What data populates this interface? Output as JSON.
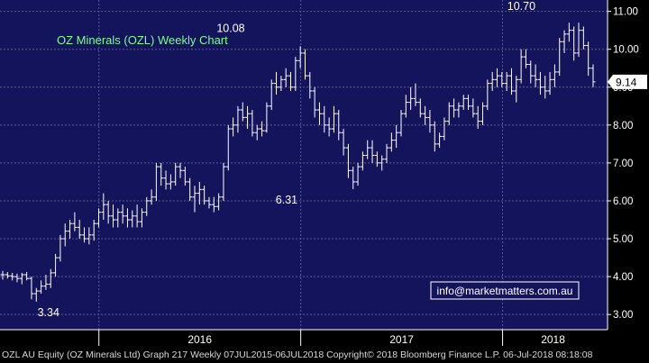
{
  "footer": "OZL AU Equity (OZ Minerals Ltd) Graph 217  Weekly 07JUL2015-06JUL2018 Copyright© 2018 Bloomberg Finance L.P. 06-Jul-2018 08:18:08",
  "colors": {
    "background": "#000000",
    "plot_background": "#14145c",
    "grid": "#5a5a90",
    "bars": "#ffffff",
    "title": "#7cff8c",
    "last_price_label_bg": "#ffffff",
    "info_border": "#ffffff",
    "info_text": "#ffffff"
  },
  "chart_data": {
    "type": "ohlc",
    "title": "OZ Minerals (OZL) Weekly Chart",
    "frequency": "weekly",
    "y_ticks": [
      "3.00",
      "4.00",
      "5.00",
      "6.00",
      "7.00",
      "8.00",
      "9.00",
      "10.00",
      "11.00"
    ],
    "ylim": [
      2.6,
      11.3
    ],
    "xlim": [
      2015.51,
      2018.52
    ],
    "x_labels": [
      {
        "label": "2016",
        "x": 2016.0
      },
      {
        "label": "2017",
        "x": 2017.0
      },
      {
        "label": "2018",
        "x": 2018.0
      }
    ],
    "last_price": "9.14",
    "annotations": [
      {
        "text": "3.34",
        "x": 2015.75,
        "y": 3.34
      },
      {
        "text": "10.08",
        "x": 2016.68,
        "y": 10.08
      },
      {
        "text": "6.31",
        "x": 2016.93,
        "y": 6.31
      },
      {
        "text": "10.70",
        "x": 2018.12,
        "y": 10.7
      }
    ],
    "info_box": "info@marketmatters.com.au",
    "series": [
      {
        "values": [
          [
            4.05,
            4.15,
            3.92,
            4.05
          ],
          [
            4.05,
            4.12,
            3.95,
            4.02
          ],
          [
            4.02,
            4.1,
            3.9,
            4.0
          ],
          [
            4.0,
            4.08,
            3.85,
            3.95
          ],
          [
            3.95,
            4.1,
            3.8,
            4.05
          ],
          [
            4.05,
            4.12,
            3.9,
            3.95
          ],
          [
            3.95,
            4.0,
            3.4,
            3.55
          ],
          [
            3.55,
            3.7,
            3.34,
            3.62
          ],
          [
            3.62,
            3.9,
            3.55,
            3.75
          ],
          [
            3.75,
            4.05,
            3.65,
            3.8
          ],
          [
            3.8,
            4.2,
            3.7,
            4.1
          ],
          [
            4.1,
            4.6,
            4.0,
            4.5
          ],
          [
            4.5,
            5.1,
            4.4,
            5.0
          ],
          [
            5.0,
            5.4,
            4.8,
            5.2
          ],
          [
            5.2,
            5.5,
            5.0,
            5.4
          ],
          [
            5.4,
            5.7,
            5.2,
            5.3
          ],
          [
            5.3,
            5.5,
            5.0,
            5.1
          ],
          [
            5.1,
            5.3,
            4.9,
            5.0
          ],
          [
            5.0,
            5.3,
            4.85,
            5.1
          ],
          [
            5.1,
            5.5,
            4.95,
            5.4
          ],
          [
            5.4,
            5.8,
            5.3,
            5.7
          ],
          [
            5.7,
            6.2,
            5.5,
            5.9
          ],
          [
            5.9,
            6.0,
            5.4,
            5.6
          ],
          [
            5.6,
            5.9,
            5.3,
            5.5
          ],
          [
            5.5,
            5.8,
            5.3,
            5.7
          ],
          [
            5.7,
            5.9,
            5.4,
            5.6
          ],
          [
            5.6,
            5.8,
            5.3,
            5.5
          ],
          [
            5.5,
            5.75,
            5.3,
            5.6
          ],
          [
            5.6,
            5.9,
            5.3,
            5.45
          ],
          [
            5.45,
            5.8,
            5.3,
            5.7
          ],
          [
            5.7,
            6.1,
            5.6,
            6.0
          ],
          [
            6.0,
            6.3,
            5.9,
            6.1
          ],
          [
            6.1,
            7.0,
            6.0,
            6.9
          ],
          [
            6.9,
            7.0,
            6.4,
            6.6
          ],
          [
            6.6,
            6.8,
            6.3,
            6.45
          ],
          [
            6.45,
            6.7,
            6.3,
            6.5
          ],
          [
            6.5,
            7.0,
            6.4,
            6.9
          ],
          [
            6.9,
            7.0,
            6.6,
            6.8
          ],
          [
            6.8,
            6.9,
            6.4,
            6.5
          ],
          [
            6.5,
            6.6,
            6.0,
            6.1
          ],
          [
            6.1,
            6.4,
            5.7,
            6.2
          ],
          [
            6.2,
            6.5,
            5.9,
            6.3
          ],
          [
            6.3,
            6.4,
            5.9,
            6.0
          ],
          [
            6.0,
            6.1,
            5.8,
            5.9
          ],
          [
            5.9,
            6.1,
            5.7,
            5.85
          ],
          [
            5.85,
            6.2,
            5.75,
            6.1
          ],
          [
            6.1,
            7.0,
            6.0,
            6.9
          ],
          [
            6.9,
            8.0,
            6.8,
            7.9
          ],
          [
            7.9,
            8.2,
            7.7,
            8.0
          ],
          [
            8.0,
            8.5,
            7.8,
            8.4
          ],
          [
            8.4,
            8.6,
            8.1,
            8.2
          ],
          [
            8.2,
            8.5,
            7.9,
            8.3
          ],
          [
            8.3,
            8.4,
            7.7,
            7.8
          ],
          [
            7.8,
            8.0,
            7.6,
            7.9
          ],
          [
            7.9,
            8.1,
            7.7,
            7.85
          ],
          [
            7.85,
            8.6,
            7.8,
            8.5
          ],
          [
            8.5,
            9.2,
            8.4,
            9.1
          ],
          [
            9.1,
            9.4,
            8.8,
            9.0
          ],
          [
            9.0,
            9.3,
            8.9,
            9.2
          ],
          [
            9.2,
            9.5,
            9.0,
            9.3
          ],
          [
            9.3,
            9.4,
            8.9,
            9.0
          ],
          [
            9.0,
            9.8,
            8.9,
            9.7
          ],
          [
            9.7,
            10.08,
            9.5,
            9.9
          ],
          [
            9.9,
            10.0,
            9.2,
            9.3
          ],
          [
            9.3,
            9.4,
            8.7,
            8.9
          ],
          [
            8.9,
            9.0,
            8.2,
            8.4
          ],
          [
            8.4,
            8.6,
            8.0,
            8.3
          ],
          [
            8.3,
            8.5,
            7.8,
            8.0
          ],
          [
            8.0,
            8.2,
            7.7,
            7.9
          ],
          [
            7.9,
            8.5,
            7.8,
            8.3
          ],
          [
            8.3,
            8.4,
            7.6,
            7.8
          ],
          [
            7.8,
            7.9,
            7.2,
            7.4
          ],
          [
            7.4,
            7.5,
            6.6,
            6.8
          ],
          [
            6.8,
            6.9,
            6.31,
            6.5
          ],
          [
            6.5,
            7.0,
            6.4,
            6.9
          ],
          [
            6.9,
            7.3,
            6.8,
            7.2
          ],
          [
            7.2,
            7.6,
            7.1,
            7.4
          ],
          [
            7.4,
            7.6,
            7.0,
            7.2
          ],
          [
            7.2,
            7.3,
            6.9,
            7.0
          ],
          [
            7.0,
            7.2,
            6.8,
            7.1
          ],
          [
            7.1,
            7.5,
            7.0,
            7.4
          ],
          [
            7.4,
            7.8,
            7.3,
            7.6
          ],
          [
            7.6,
            8.0,
            7.4,
            7.8
          ],
          [
            7.8,
            8.4,
            7.7,
            8.3
          ],
          [
            8.3,
            8.8,
            8.2,
            8.6
          ],
          [
            8.6,
            9.0,
            8.4,
            8.7
          ],
          [
            8.7,
            9.1,
            8.5,
            8.6
          ],
          [
            8.6,
            8.7,
            8.2,
            8.3
          ],
          [
            8.3,
            8.5,
            8.0,
            8.2
          ],
          [
            8.2,
            8.4,
            7.8,
            8.0
          ],
          [
            8.0,
            8.1,
            7.3,
            7.5
          ],
          [
            7.5,
            7.8,
            7.4,
            7.7
          ],
          [
            7.7,
            8.2,
            7.6,
            8.1
          ],
          [
            8.1,
            8.6,
            8.0,
            8.5
          ],
          [
            8.5,
            8.7,
            8.2,
            8.4
          ],
          [
            8.4,
            8.6,
            8.2,
            8.5
          ],
          [
            8.5,
            8.8,
            8.4,
            8.7
          ],
          [
            8.7,
            8.8,
            8.4,
            8.5
          ],
          [
            8.5,
            8.7,
            8.2,
            8.3
          ],
          [
            8.3,
            8.5,
            7.9,
            8.1
          ],
          [
            8.1,
            8.6,
            8.0,
            8.5
          ],
          [
            8.5,
            9.2,
            8.4,
            9.1
          ],
          [
            9.1,
            9.4,
            8.9,
            9.2
          ],
          [
            9.2,
            9.5,
            9.0,
            9.3
          ],
          [
            9.3,
            9.4,
            9.0,
            9.1
          ],
          [
            9.1,
            9.4,
            8.9,
            9.3
          ],
          [
            9.3,
            9.5,
            8.8,
            8.9
          ],
          [
            8.9,
            9.3,
            8.6,
            9.2
          ],
          [
            9.2,
            10.0,
            9.1,
            9.8
          ],
          [
            9.8,
            10.0,
            9.5,
            9.6
          ],
          [
            9.6,
            9.7,
            9.1,
            9.3
          ],
          [
            9.3,
            9.6,
            9.0,
            9.2
          ],
          [
            9.2,
            9.4,
            8.8,
            9.0
          ],
          [
            9.0,
            9.3,
            8.7,
            8.9
          ],
          [
            8.9,
            9.4,
            8.8,
            9.2
          ],
          [
            9.2,
            9.6,
            9.0,
            9.4
          ],
          [
            9.4,
            10.3,
            9.3,
            10.2
          ],
          [
            10.2,
            10.5,
            9.9,
            10.4
          ],
          [
            10.4,
            10.7,
            10.2,
            10.5
          ],
          [
            10.5,
            10.6,
            9.7,
            9.9
          ],
          [
            9.9,
            10.7,
            9.8,
            10.5
          ],
          [
            10.5,
            10.6,
            10.0,
            10.1
          ],
          [
            10.1,
            10.2,
            9.3,
            9.5
          ],
          [
            9.5,
            9.6,
            9.0,
            9.14
          ]
        ]
      }
    ]
  }
}
